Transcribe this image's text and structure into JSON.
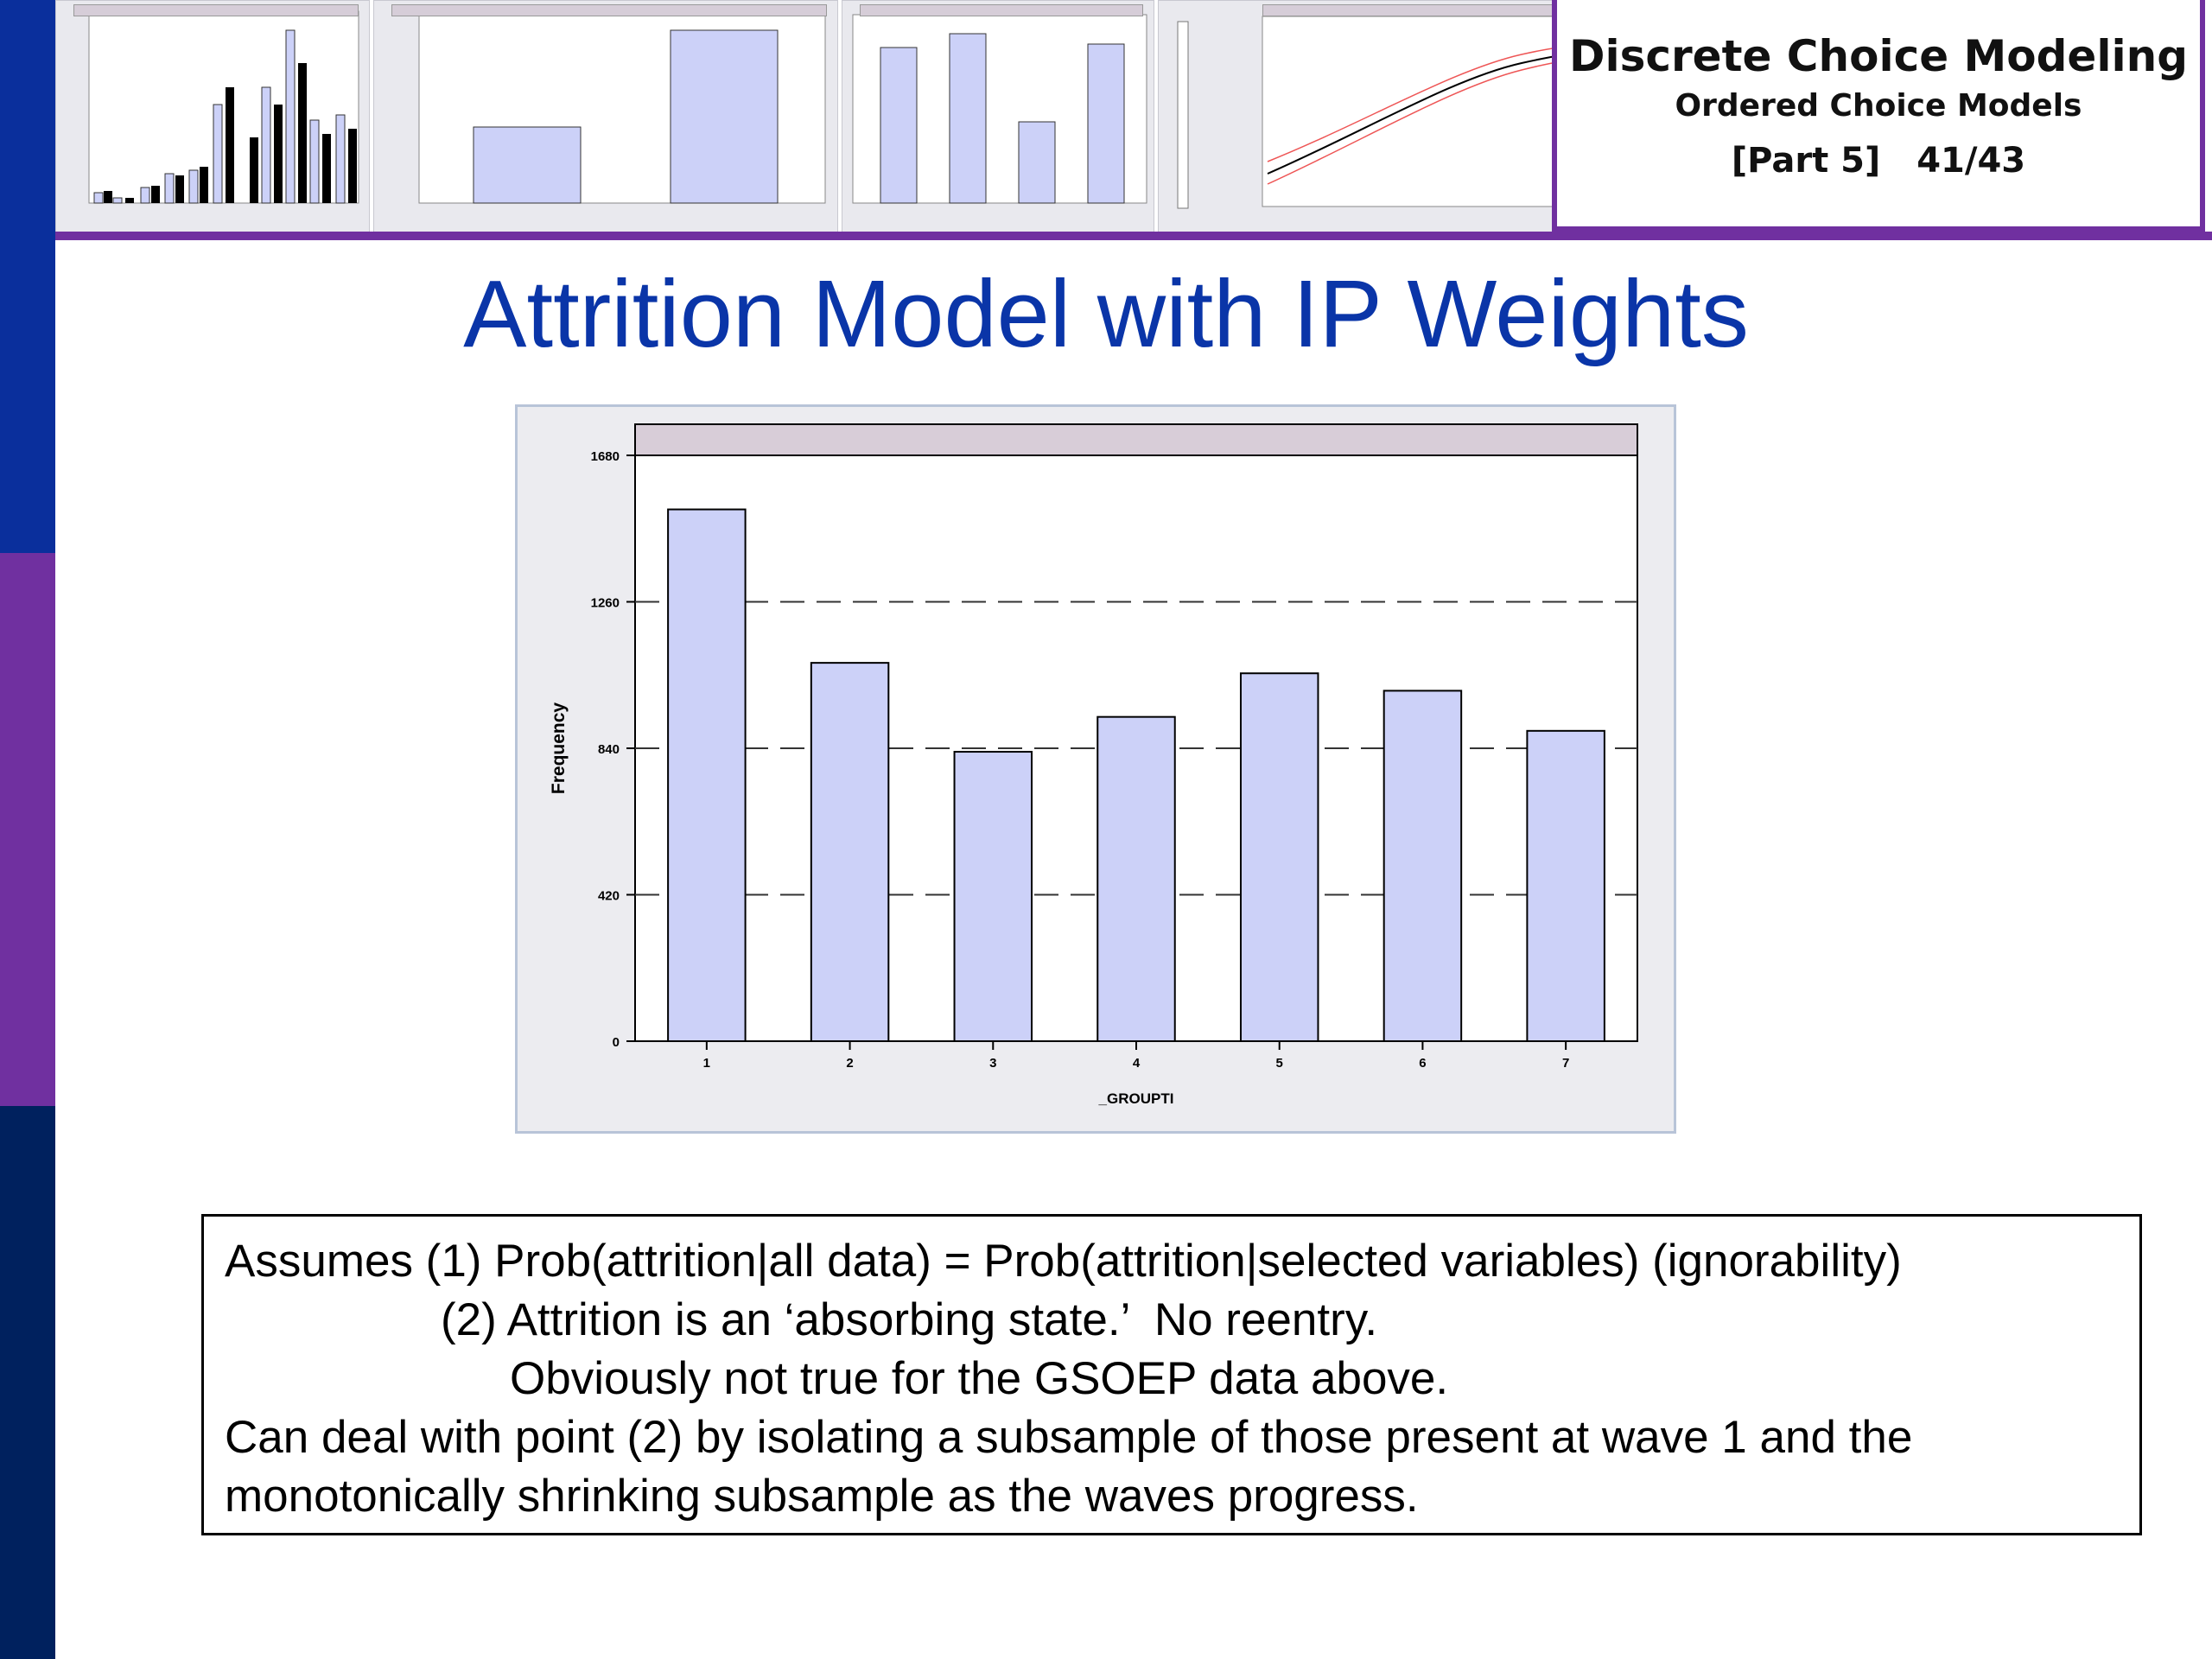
{
  "course": {
    "title": "Discrete Choice Modeling",
    "subtitle": "Ordered Choice Models",
    "part": "[Part 5]",
    "page": "41/43"
  },
  "slide": {
    "title": "Attrition Model with IP Weights"
  },
  "chart_data": {
    "type": "bar",
    "categories": [
      "1",
      "2",
      "3",
      "4",
      "5",
      "6",
      "7"
    ],
    "values": [
      1525,
      1085,
      830,
      930,
      1055,
      1005,
      890
    ],
    "xlabel": "_GROUPTI",
    "ylabel": "Frequency",
    "ylim": [
      0,
      1680
    ],
    "yticks": [
      "0",
      "420",
      "840",
      "1260",
      "1680"
    ],
    "grid": true,
    "bar_color": "#ccd1f8"
  },
  "notes": {
    "line1": "Assumes (1) Prob(attrition|all data) = Prob(attrition|selected variables) (ignorability)",
    "line2": "(2) Attrition is an ‘absorbing state.’  No reentry.",
    "line3": "Obviously not true for the GSOEP data above.",
    "line4": "Can deal with point (2) by isolating a subsample of those present at wave 1 and the",
    "line5": "monotonically shrinking subsample as the waves progress."
  },
  "colors": {
    "title_blue": "#0a35a8",
    "accent_purple": "#7030a0",
    "stripe_blue": "#0a2f9c",
    "stripe_navy": "#00215e"
  }
}
